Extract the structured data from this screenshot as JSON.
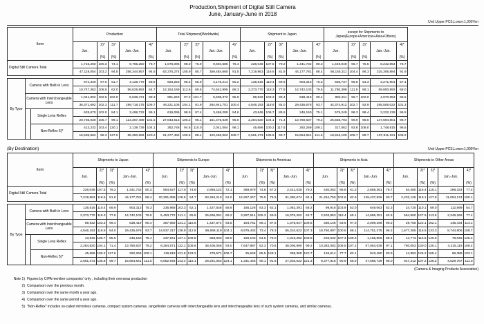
{
  "page": {
    "title_line1": "Production,Shipment of Digital Still Camera",
    "title_line2": "June, January-June in 2018",
    "unit_note": "Unit Upper:PCS,Lower:1,000Yen",
    "by_destination_label": "(By Destination)",
    "association": "(Camera & Imaging Products Association)"
  },
  "headers": {
    "item": "Item",
    "sub": [
      "Jun.",
      "2)*",
      "3)*",
      "Jan.-Jun.",
      "4)*"
    ],
    "pct": "(%)"
  },
  "labels": {
    "total": "Digital Still Camera Total",
    "by_type": "By Type"
  },
  "table1": {
    "groups": [
      "Production",
      "Total Shipment(Worldwide)",
      "Shipment to Japan",
      "except for Shipments to Japan(Europe+Americas+Asia+Others)"
    ],
    "total": {
      "pcs": [
        "1,716,250",
        "100.3",
        "74.1",
        "9,765,250",
        "76.7",
        "1,675,096",
        "98.0",
        "75.9",
        "9,694,586",
        "76.4",
        "226,048",
        "107.5",
        "79.2",
        "1,441,732",
        "80.3",
        "1,449,048",
        "96.7",
        "75.5",
        "8,242,854",
        "75.7"
      ],
      "yen": [
        "47,119,054",
        "103.2",
        "94.5",
        "256,344,857",
        "94.5",
        "63,375,274",
        "105.9",
        "85.7",
        "359,484,665",
        "91.5",
        "7,219,963",
        "118.6",
        "81.8",
        "44,177,781",
        "88.4",
        "56,155,311",
        "104.4",
        "86.3",
        "315,306,884",
        "91.9"
      ]
    },
    "types": [
      {
        "label": "Camera with Built-in Lens",
        "indent": false,
        "pcs": [
          "674,349",
          "97.0",
          "51.7",
          "4,126,779",
          "58.9",
          "693,253",
          "98.2",
          "55.9",
          "4,175,214",
          "60.2",
          "136,516",
          "110.4",
          "69.9",
          "903,313",
          "75.3",
          "556,737",
          "96.8",
          "53.3",
          "3,271,901",
          "57.1"
        ],
        "yen": [
          "10,747,362",
          "106.5",
          "62.0",
          "56,625,892",
          "64.7",
          "14,154,169",
          "112.6",
          "69.5",
          "74,542,995",
          "68.3",
          "2,373,770",
          "118.3",
          "77.8",
          "14,742,103",
          "79.5",
          "11,780,398",
          "111.5",
          "68.1",
          "59,800,892",
          "66.0"
        ]
      },
      {
        "label": "Camera with Interchangeable Lens",
        "indent": false,
        "pcs": [
          "1,041,902",
          "102.5",
          "102.9",
          "5,638,471",
          "98.3",
          "981,843",
          "97.2",
          "101.7",
          "5,508,372",
          "95.9",
          "89,532",
          "103.3",
          "99.4",
          "538,419",
          "90.4",
          "892,311",
          "96.7",
          "102.0",
          "4,970,953",
          "96.5"
        ],
        "yen": [
          "36,371,692",
          "102.3",
          "111.7",
          "199,718,175",
          "105.7",
          "49,221,105",
          "104.1",
          "91.9",
          "284,941,701",
          "100.4",
          "4,846,193",
          "118.8",
          "84.0",
          "29,435,678",
          "93.7",
          "44,374,912",
          "102.7",
          "92.9",
          "255,506,022",
          "101.3"
        ]
      },
      {
        "label": "Single Lens Reflex",
        "indent": true,
        "pcs": [
          "628,670",
          "102.0",
          "84.1",
          "3,498,732",
          "95.1",
          "619,095",
          "98.9",
          "97.4",
          "3,468,289",
          "94.6",
          "43,846",
          "106.7",
          "85.5",
          "246,150",
          "75.1",
          "575,249",
          "98.3",
          "98.4",
          "3,222,139",
          "96.5"
        ],
        "yen": [
          "20,736,030",
          "105.7",
          "99.1",
          "114,367,489",
          "101.5",
          "27,843,613",
          "106.2",
          "95.1",
          "161,475,639",
          "95.0",
          "2,284,820",
          "104.1",
          "71.4",
          "13,780,637",
          "79.2",
          "25,558,793",
          "99.9",
          "98.0",
          "147,694,801",
          "96.7"
        ]
      },
      {
        "label": "Non-Reflex 5)*",
        "indent": true,
        "pcs": [
          "413,232",
          "103.4",
          "120.1",
          "2,139,739",
          "104.1",
          "362,748",
          "94.6",
          "110.0",
          "2,041,084",
          "98.1",
          "45,686",
          "100.2",
          "117.6",
          "292,269",
          "109.1",
          "317,062",
          "93.8",
          "108.0",
          "1,748,815",
          "96.5"
        ],
        "yen": [
          "15,635,662",
          "98.3",
          "137.0",
          "85,350,686",
          "120.2",
          "21,377,482",
          "109.6",
          "88.1",
          "123,466,062",
          "108.7",
          "2,561,373",
          "135.8",
          "99.7",
          "15,654,841",
          "111.5",
          "18,816,109",
          "106.7",
          "88.7",
          "107,811,221",
          "108.2"
        ]
      }
    ]
  },
  "table2": {
    "groups": [
      "Shipments to Japan",
      "Shipments to Europe",
      "Shipments to Americas",
      "Shipments to Asia",
      "Shipments to Other Areas"
    ],
    "total": {
      "pcs": [
        "226,048",
        "107.5",
        "79.2",
        "1,441,732",
        "80.3",
        "594,627",
        "117.0",
        "74.9",
        "2,865,122",
        "72.1",
        "369,879",
        "74.8",
        "67.2",
        "2,441,035",
        "79.2",
        "430,062",
        "95.8",
        "61.3",
        "2,658,361",
        "76.7",
        "54,480",
        "116.4",
        "115.1",
        "288,333",
        "77.4"
      ],
      "yen": [
        "7,219,963",
        "118.6",
        "81.8",
        "44,177,781",
        "88.4",
        "20,391,089",
        "128.9",
        "94.7",
        "93,394,210",
        "91.0",
        "12,267,347",
        "79.9",
        "75.9",
        "81,380,674",
        "94.1",
        "21,264,750",
        "102.6",
        "82.9",
        "129,437,826",
        "90.7",
        "2,232,125",
        "119.1",
        "127.8",
        "11,094,174",
        "100.1"
      ]
    },
    "types": [
      {
        "label": "Camera with Built-in Lens",
        "indent": false,
        "pcs": [
          "136,516",
          "110.4",
          "69.9",
          "903,313",
          "75.3",
          "236,968",
          "103.3",
          "52.1",
          "1,427,548",
          "58.8",
          "185,128",
          "83.3",
          "62.1",
          "1,062,391",
          "58.2",
          "99,916",
          "103.9",
          "53.0",
          "649,063",
          "52.3",
          "24,725",
          "110.1",
          "89.0",
          "112,899",
          "54.7"
        ],
        "yen": [
          "2,373,770",
          "118.3",
          "77.8",
          "14,742,103",
          "79.5",
          "5,453,772",
          "111.1",
          "65.8",
          "26,696,091",
          "69.2",
          "3,287,914",
          "105.3",
          "69.9",
          "16,076,262",
          "62.7",
          "2,503,853",
          "118.4",
          "65.1",
          "14,686,251",
          "62.6",
          "554,960",
          "127.9",
          "113.6",
          "2,349,268",
          "77.4"
        ]
      },
      {
        "label": "Camera with Interchangeable Lens",
        "indent": false,
        "pcs": [
          "89,532",
          "103.3",
          "99.4",
          "538,419",
          "90.4",
          "357,659",
          "131.1",
          "116.5",
          "1,437,574",
          "93.5",
          "184,751",
          "69.1",
          "87.6",
          "1,378,647",
          "109.5",
          "330,146",
          "93.6",
          "97.0",
          "2,009,298",
          "90.2",
          "29,755",
          "122.1",
          "152.1",
          "145,434",
          "114.1"
        ],
        "yen": [
          "4,846,193",
          "118.8",
          "84.0",
          "29,435,678",
          "93.7",
          "14,937,317",
          "138.9",
          "112.8",
          "66,698,119",
          "104.1",
          "8,979,433",
          "73.4",
          "78.3",
          "65,310,622",
          "107.3",
          "18,760,897",
          "100.6",
          "86.1",
          "114,751,375",
          "96.2",
          "1,677,265",
          "116.5",
          "133.3",
          "8,744,906",
          "108.7"
        ]
      },
      {
        "label": "Single Lens Reflex",
        "indent": true,
        "pcs": [
          "43,846",
          "106.7",
          "85.5",
          "246,150",
          "75.1",
          "237,841",
          "137.1",
          "108.8",
          "958,003",
          "88.0",
          "159,103",
          "64.5",
          "76.0",
          "1,019,282",
          "105.8",
          "203,532",
          "107.3",
          "109.3",
          "1,165,806",
          "95.4",
          "14,773",
          "116.5",
          "140.6",
          "79,045",
          "125.4"
        ],
        "yen": [
          "2,284,820",
          "104.1",
          "71.4",
          "13,780,637",
          "79.2",
          "8,284,671",
          "132.1",
          "108.8",
          "38,406,056",
          "93.0",
          "7,647,987",
          "62.3",
          "70.6",
          "38,006,990",
          "99.2",
          "10,383,082",
          "108.5",
          "107.2",
          "67,064,636",
          "97.1",
          "760,053",
          "130.0",
          "130.1",
          "4,215,119",
          "106.4"
        ]
      },
      {
        "label": "Non-Reflex 5)*",
        "indent": true,
        "pcs": [
          "45,686",
          "100.2",
          "117.6",
          "292,269",
          "109.1",
          "119,818",
          "121.9",
          "133.2",
          "479,571",
          "106.7",
          "25,648",
          "85.5",
          "148.1",
          "358,365",
          "122.7",
          "126,614",
          "77.7",
          "82.1",
          "843,490",
          "83.9",
          "14,982",
          "126.2",
          "165.4",
          "66,389",
          "103.1"
        ],
        "yen": [
          "2,561,373",
          "135.8",
          "99.7",
          "15,654,841",
          "111.5",
          "6,652,646",
          "143.4",
          "118.1",
          "28,291,063",
          "124.1",
          "1,331,446",
          "90.1",
          "91.6",
          "27,303,632",
          "121.3",
          "8,377,815",
          "90.9",
          "66.0",
          "47,686,739",
          "95.0",
          "917,212",
          "107.2",
          "136.2",
          "4,529,787",
          "111.0"
        ]
      }
    ]
  },
  "notes": [
    {
      "num": "Note 1)",
      "text": "Figures by CIPA member companies' only , including their overseas production"
    },
    {
      "num": "2)",
      "text": "Comparison over the previous month."
    },
    {
      "num": "3)",
      "text": "Comparison over the same month a year ago."
    },
    {
      "num": "4)",
      "text": "Comparison over the same period a year ago."
    },
    {
      "num": "5)",
      "text": "\"Non-Reflex\" includes so-called mirrorless cameras, compact system cameras, rangefinder cameras with interchangeable lens and interchangeable lens of such system cameras, and similar cameras."
    }
  ]
}
